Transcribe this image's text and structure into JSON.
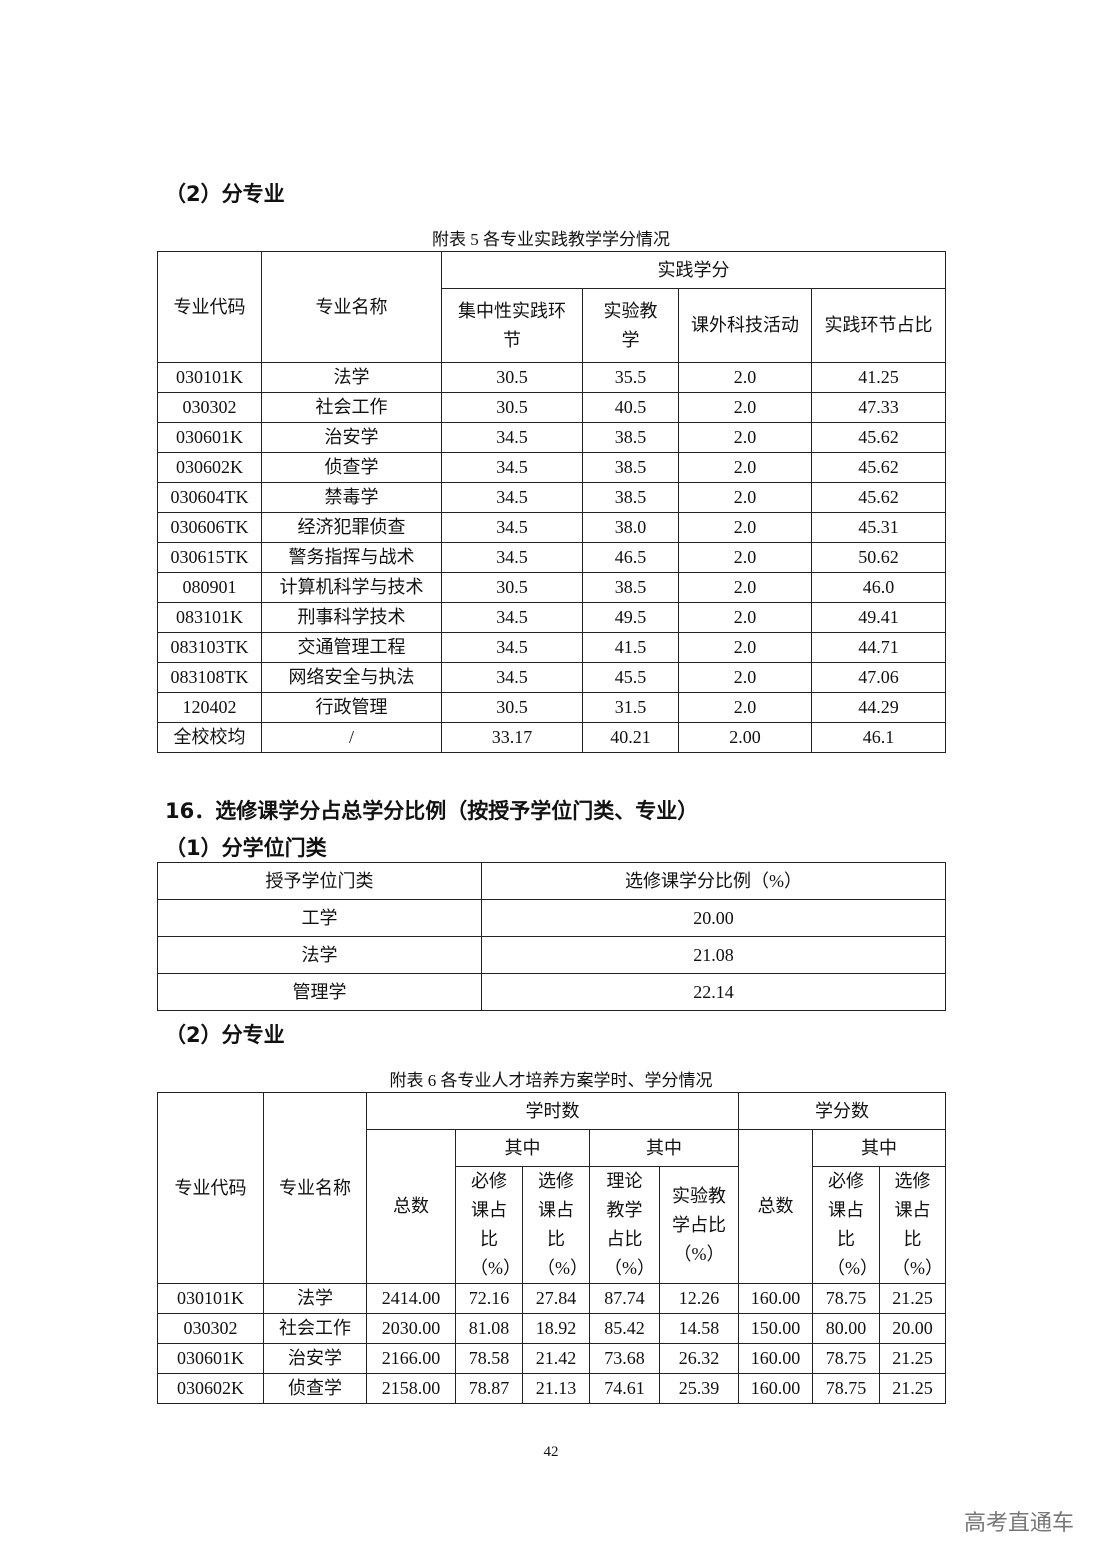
{
  "section_a_heading": "（2）分专业",
  "table5": {
    "caption": "附表 5  各专业实践教学学分情况",
    "headers": {
      "code": "专业代码",
      "name": "专业名称",
      "group": "实践学分",
      "c1": "集中性实践环节",
      "c2": "实验教学",
      "c3": "课外科技活动",
      "c4": "实践环节占比"
    },
    "rows": [
      [
        "030101K",
        "法学",
        "30.5",
        "35.5",
        "2.0",
        "41.25"
      ],
      [
        "030302",
        "社会工作",
        "30.5",
        "40.5",
        "2.0",
        "47.33"
      ],
      [
        "030601K",
        "治安学",
        "34.5",
        "38.5",
        "2.0",
        "45.62"
      ],
      [
        "030602K",
        "侦查学",
        "34.5",
        "38.5",
        "2.0",
        "45.62"
      ],
      [
        "030604TK",
        "禁毒学",
        "34.5",
        "38.5",
        "2.0",
        "45.62"
      ],
      [
        "030606TK",
        "经济犯罪侦查",
        "34.5",
        "38.0",
        "2.0",
        "45.31"
      ],
      [
        "030615TK",
        "警务指挥与战术",
        "34.5",
        "46.5",
        "2.0",
        "50.62"
      ],
      [
        "080901",
        "计算机科学与技术",
        "30.5",
        "38.5",
        "2.0",
        "46.0"
      ],
      [
        "083101K",
        "刑事科学技术",
        "34.5",
        "49.5",
        "2.0",
        "49.41"
      ],
      [
        "083103TK",
        "交通管理工程",
        "34.5",
        "41.5",
        "2.0",
        "44.71"
      ],
      [
        "083108TK",
        "网络安全与执法",
        "34.5",
        "45.5",
        "2.0",
        "47.06"
      ],
      [
        "120402",
        "行政管理",
        "30.5",
        "31.5",
        "2.0",
        "44.29"
      ],
      [
        "全校校均",
        "/",
        "33.17",
        "40.21",
        "2.00",
        "46.1"
      ]
    ]
  },
  "section16_heading": "16．选修课学分占总学分比例（按授予学位门类、专业）",
  "sub1_heading": "（1）分学位门类",
  "degree_table": {
    "headers": [
      "授予学位门类",
      "选修课学分比例（%）"
    ],
    "rows": [
      [
        "工学",
        "20.00"
      ],
      [
        "法学",
        "21.08"
      ],
      [
        "管理学",
        "22.14"
      ]
    ]
  },
  "sub2_heading": "（2）分专业",
  "table6": {
    "caption": "附表 6  各专业人才培养方案学时、学分情况",
    "headers": {
      "code": "专业代码",
      "name": "专业名称",
      "hours": "学时数",
      "credits": "学分数",
      "total": "总数",
      "among": "其中",
      "req": "必修课占比（%）",
      "elec": "选修课占比（%）",
      "theory": "理论教学占比（%）",
      "lab": "实验教学占比（%）"
    },
    "rows": [
      [
        "030101K",
        "法学",
        "2414.00",
        "72.16",
        "27.84",
        "87.74",
        "12.26",
        "160.00",
        "78.75",
        "21.25"
      ],
      [
        "030302",
        "社会工作",
        "2030.00",
        "81.08",
        "18.92",
        "85.42",
        "14.58",
        "150.00",
        "80.00",
        "20.00"
      ],
      [
        "030601K",
        "治安学",
        "2166.00",
        "78.58",
        "21.42",
        "73.68",
        "26.32",
        "160.00",
        "78.75",
        "21.25"
      ],
      [
        "030602K",
        "侦查学",
        "2158.00",
        "78.87",
        "21.13",
        "74.61",
        "25.39",
        "160.00",
        "78.75",
        "21.25"
      ]
    ]
  },
  "page_number": "42",
  "watermark": "高考直通车"
}
